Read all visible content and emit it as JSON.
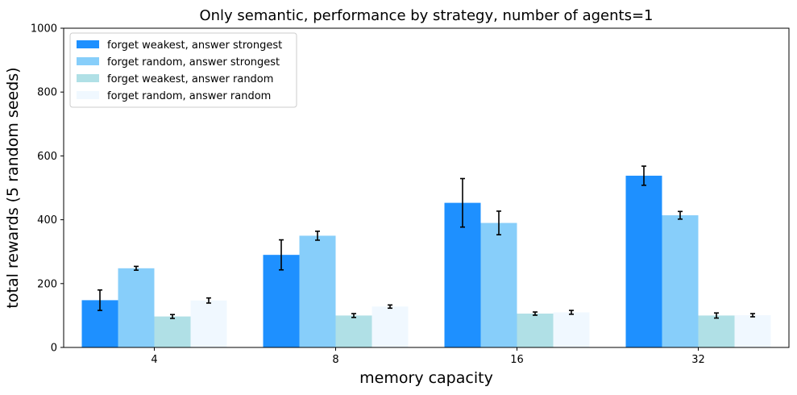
{
  "chart_data": {
    "type": "bar",
    "title": "Only semantic, performance by strategy, number of agents=1",
    "xlabel": "memory capacity",
    "ylabel": "total rewards (5 random seeds)",
    "categories": [
      "4",
      "8",
      "16",
      "32"
    ],
    "ylim": [
      0,
      1000
    ],
    "yticks": [
      0,
      200,
      400,
      600,
      800,
      1000
    ],
    "legend_position": "top-left",
    "grid": false,
    "error_bars": true,
    "series": [
      {
        "name": "forget weakest, answer strongest",
        "color": "#1e90ff",
        "values": [
          148,
          290,
          453,
          538
        ],
        "errors": [
          32,
          47,
          76,
          30
        ]
      },
      {
        "name": "forget random, answer strongest",
        "color": "#87cefa",
        "values": [
          248,
          350,
          390,
          414
        ],
        "errors": [
          6,
          14,
          37,
          12
        ]
      },
      {
        "name": "forget weakest, answer random",
        "color": "#b0e0e6",
        "values": [
          97,
          100,
          106,
          100
        ],
        "errors": [
          6,
          6,
          5,
          8
        ]
      },
      {
        "name": "forget random, answer random",
        "color": "#f0f8ff",
        "values": [
          147,
          128,
          110,
          101
        ],
        "errors": [
          8,
          5,
          6,
          5
        ]
      }
    ]
  }
}
